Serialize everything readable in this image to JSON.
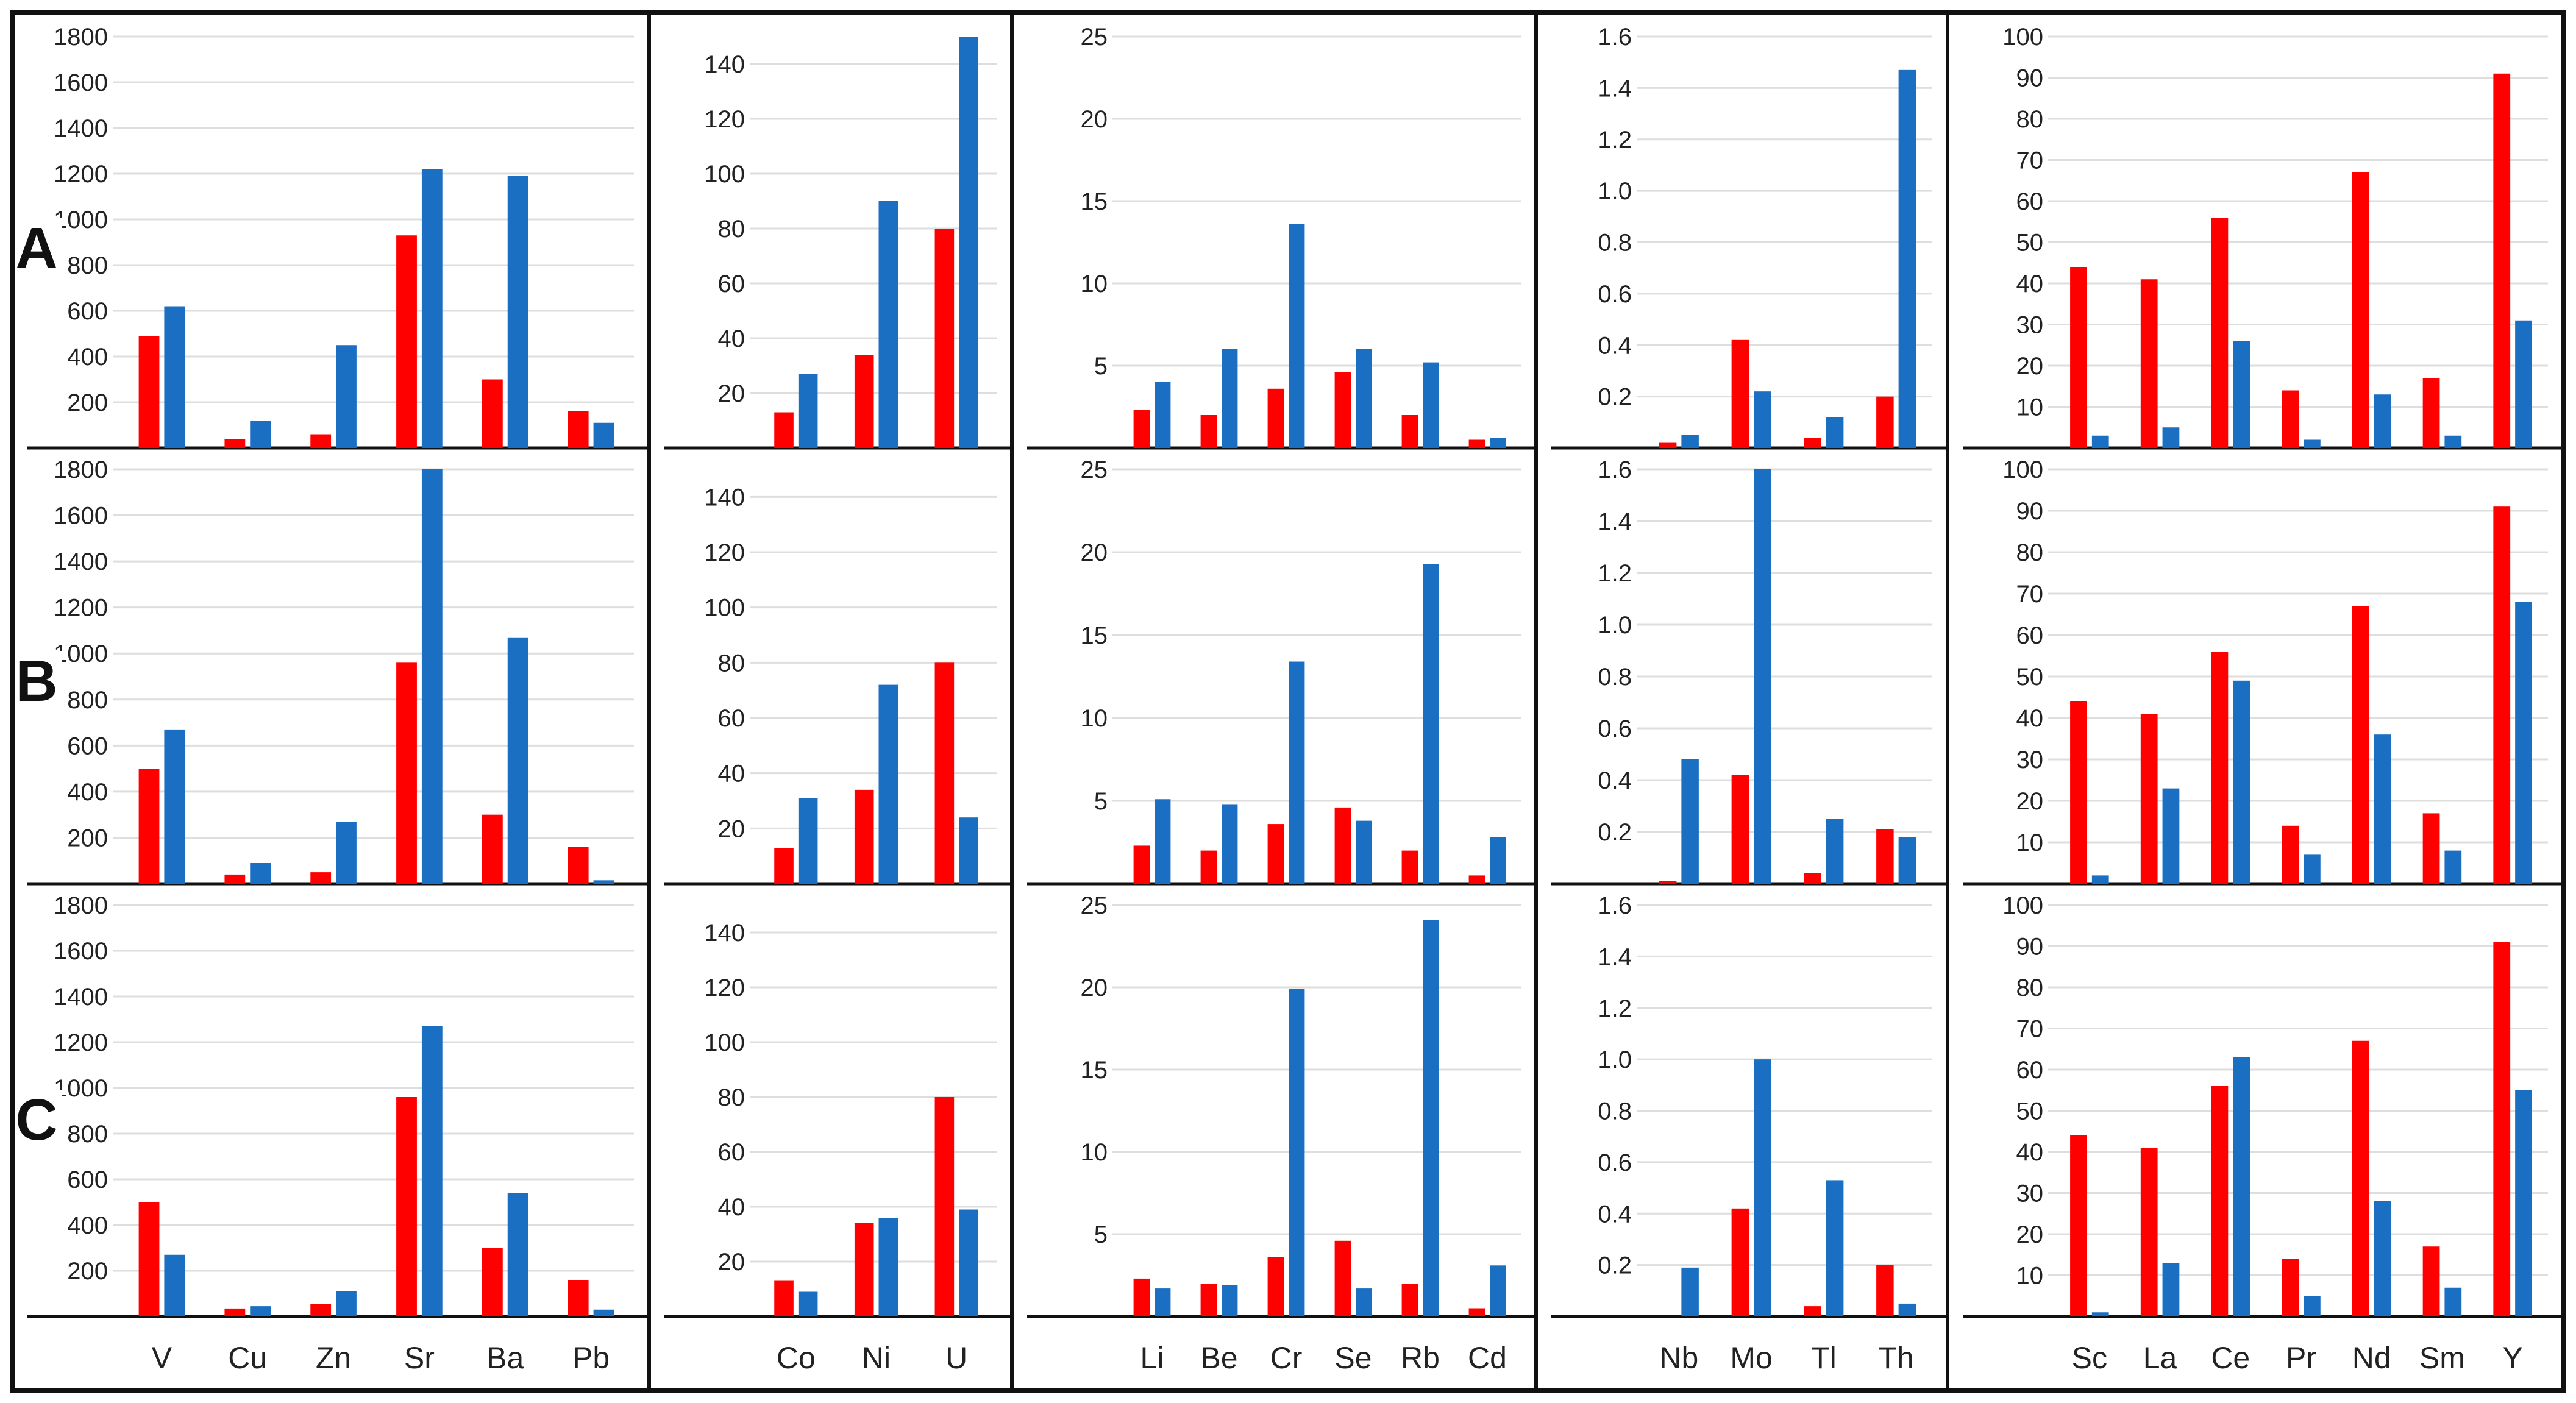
{
  "colors": {
    "series_a": "#ff0000",
    "series_b": "#1b6fc2",
    "frame": "#111111"
  },
  "row_labels": [
    "A",
    "B",
    "C"
  ],
  "chart_data": [
    {
      "type": "bar",
      "row": "A",
      "categories": [
        "V",
        "Cu",
        "Zn",
        "Sr",
        "Ba",
        "Pb"
      ],
      "ylim": [
        0,
        1800
      ],
      "yticks": [
        200,
        400,
        600,
        800,
        1000,
        1200,
        1400,
        1600,
        1800
      ],
      "series": [
        {
          "name": "red",
          "values": [
            490,
            40,
            60,
            930,
            300,
            160
          ]
        },
        {
          "name": "blue",
          "values": [
            620,
            120,
            450,
            1220,
            1190,
            110
          ]
        }
      ]
    },
    {
      "type": "bar",
      "row": "A",
      "categories": [
        "Co",
        "Ni",
        "U"
      ],
      "ylim": [
        0,
        150
      ],
      "yticks": [
        20,
        40,
        60,
        80,
        100,
        120,
        140
      ],
      "series": [
        {
          "name": "red",
          "values": [
            13,
            34,
            80
          ]
        },
        {
          "name": "blue",
          "values": [
            27,
            90,
            150
          ]
        }
      ]
    },
    {
      "type": "bar",
      "row": "A",
      "categories": [
        "Li",
        "Be",
        "Cr",
        "Se",
        "Rb",
        "Cd"
      ],
      "ylim": [
        0,
        25
      ],
      "yticks": [
        5,
        10,
        15,
        20,
        25
      ],
      "series": [
        {
          "name": "red",
          "values": [
            2.3,
            2,
            3.6,
            4.6,
            2,
            0.5
          ]
        },
        {
          "name": "blue",
          "values": [
            4,
            6,
            13.6,
            6,
            5.2,
            0.6
          ]
        }
      ]
    },
    {
      "type": "bar",
      "row": "A",
      "categories": [
        "Nb",
        "Mo",
        "Tl",
        "Th"
      ],
      "ylim": [
        0,
        1.6
      ],
      "yticks": [
        0.2,
        0.4,
        0.6,
        0.8,
        1.0,
        1.2,
        1.4,
        1.6
      ],
      "series": [
        {
          "name": "red",
          "values": [
            0.02,
            0.42,
            0.04,
            0.2
          ]
        },
        {
          "name": "blue",
          "values": [
            0.05,
            0.22,
            0.12,
            1.47
          ]
        }
      ]
    },
    {
      "type": "bar",
      "row": "A",
      "categories": [
        "Sc",
        "La",
        "Ce",
        "Pr",
        "Nd",
        "Sm",
        "Y"
      ],
      "ylim": [
        0,
        100
      ],
      "yticks": [
        10,
        20,
        30,
        40,
        50,
        60,
        70,
        80,
        90,
        100
      ],
      "series": [
        {
          "name": "red",
          "values": [
            44,
            41,
            56,
            14,
            67,
            17,
            91
          ]
        },
        {
          "name": "blue",
          "values": [
            3,
            5,
            26,
            2,
            13,
            3,
            31
          ]
        }
      ]
    },
    {
      "type": "bar",
      "row": "B",
      "categories": [
        "V",
        "Cu",
        "Zn",
        "Sr",
        "Ba",
        "Pb"
      ],
      "ylim": [
        0,
        1800
      ],
      "yticks": [
        200,
        400,
        600,
        800,
        1000,
        1200,
        1400,
        1600,
        1800
      ],
      "series": [
        {
          "name": "red",
          "values": [
            500,
            40,
            50,
            960,
            300,
            160
          ]
        },
        {
          "name": "blue",
          "values": [
            670,
            90,
            270,
            1800,
            1070,
            15
          ]
        }
      ]
    },
    {
      "type": "bar",
      "row": "B",
      "categories": [
        "Co",
        "Ni",
        "U"
      ],
      "ylim": [
        0,
        150
      ],
      "yticks": [
        20,
        40,
        60,
        80,
        100,
        120,
        140
      ],
      "series": [
        {
          "name": "red",
          "values": [
            13,
            34,
            80
          ]
        },
        {
          "name": "blue",
          "values": [
            31,
            72,
            24
          ]
        }
      ]
    },
    {
      "type": "bar",
      "row": "B",
      "categories": [
        "Li",
        "Be",
        "Cr",
        "Se",
        "Rb",
        "Cd"
      ],
      "ylim": [
        0,
        25
      ],
      "yticks": [
        5,
        10,
        15,
        20,
        25
      ],
      "series": [
        {
          "name": "red",
          "values": [
            2.3,
            2,
            3.6,
            4.6,
            2,
            0.5
          ]
        },
        {
          "name": "blue",
          "values": [
            5.1,
            4.8,
            13.4,
            3.8,
            19.3,
            2.8
          ]
        }
      ]
    },
    {
      "type": "bar",
      "row": "B",
      "categories": [
        "Nb",
        "Mo",
        "Tl",
        "Th"
      ],
      "ylim": [
        0,
        1.6
      ],
      "yticks": [
        0.2,
        0.4,
        0.6,
        0.8,
        1.0,
        1.2,
        1.4,
        1.6
      ],
      "series": [
        {
          "name": "red",
          "values": [
            0.01,
            0.42,
            0.04,
            0.21
          ]
        },
        {
          "name": "blue",
          "values": [
            0.48,
            1.6,
            0.25,
            0.18
          ]
        }
      ]
    },
    {
      "type": "bar",
      "row": "B",
      "categories": [
        "Sc",
        "La",
        "Ce",
        "Pr",
        "Nd",
        "Sm",
        "Y"
      ],
      "ylim": [
        0,
        100
      ],
      "yticks": [
        10,
        20,
        30,
        40,
        50,
        60,
        70,
        80,
        90,
        100
      ],
      "series": [
        {
          "name": "red",
          "values": [
            44,
            41,
            56,
            14,
            67,
            17,
            91
          ]
        },
        {
          "name": "blue",
          "values": [
            2,
            23,
            49,
            7,
            36,
            8,
            68
          ]
        }
      ]
    },
    {
      "type": "bar",
      "row": "C",
      "categories": [
        "V",
        "Cu",
        "Zn",
        "Sr",
        "Ba",
        "Pb"
      ],
      "ylim": [
        0,
        1800
      ],
      "yticks": [
        200,
        400,
        600,
        800,
        1000,
        1200,
        1400,
        1600,
        1800
      ],
      "series": [
        {
          "name": "red",
          "values": [
            500,
            35,
            55,
            960,
            300,
            160
          ]
        },
        {
          "name": "blue",
          "values": [
            270,
            45,
            110,
            1270,
            540,
            30
          ]
        }
      ]
    },
    {
      "type": "bar",
      "row": "C",
      "categories": [
        "Co",
        "Ni",
        "U"
      ],
      "ylim": [
        0,
        150
      ],
      "yticks": [
        20,
        40,
        60,
        80,
        100,
        120,
        140
      ],
      "series": [
        {
          "name": "red",
          "values": [
            13,
            34,
            80
          ]
        },
        {
          "name": "blue",
          "values": [
            9,
            36,
            39
          ]
        }
      ]
    },
    {
      "type": "bar",
      "row": "C",
      "categories": [
        "Li",
        "Be",
        "Cr",
        "Se",
        "Rb",
        "Cd"
      ],
      "ylim": [
        0,
        25
      ],
      "yticks": [
        5,
        10,
        15,
        20,
        25
      ],
      "series": [
        {
          "name": "red",
          "values": [
            2.3,
            2,
            3.6,
            4.6,
            2,
            0.5
          ]
        },
        {
          "name": "blue",
          "values": [
            1.7,
            1.9,
            19.9,
            1.7,
            24.1,
            3.1
          ]
        }
      ]
    },
    {
      "type": "bar",
      "row": "C",
      "categories": [
        "Nb",
        "Mo",
        "Tl",
        "Th"
      ],
      "ylim": [
        0,
        1.6
      ],
      "yticks": [
        0.2,
        0.4,
        0.6,
        0.8,
        1.0,
        1.2,
        1.4,
        1.6
      ],
      "series": [
        {
          "name": "red",
          "values": [
            0,
            0.42,
            0.04,
            0.2
          ]
        },
        {
          "name": "blue",
          "values": [
            0.19,
            1.0,
            0.53,
            0.05
          ]
        }
      ]
    },
    {
      "type": "bar",
      "row": "C",
      "categories": [
        "Sc",
        "La",
        "Ce",
        "Pr",
        "Nd",
        "Sm",
        "Y"
      ],
      "ylim": [
        0,
        100
      ],
      "yticks": [
        10,
        20,
        30,
        40,
        50,
        60,
        70,
        80,
        90,
        100
      ],
      "series": [
        {
          "name": "red",
          "values": [
            44,
            41,
            56,
            14,
            67,
            17,
            91
          ]
        },
        {
          "name": "blue",
          "values": [
            1,
            13,
            63,
            5,
            28,
            7,
            55
          ]
        }
      ]
    }
  ]
}
